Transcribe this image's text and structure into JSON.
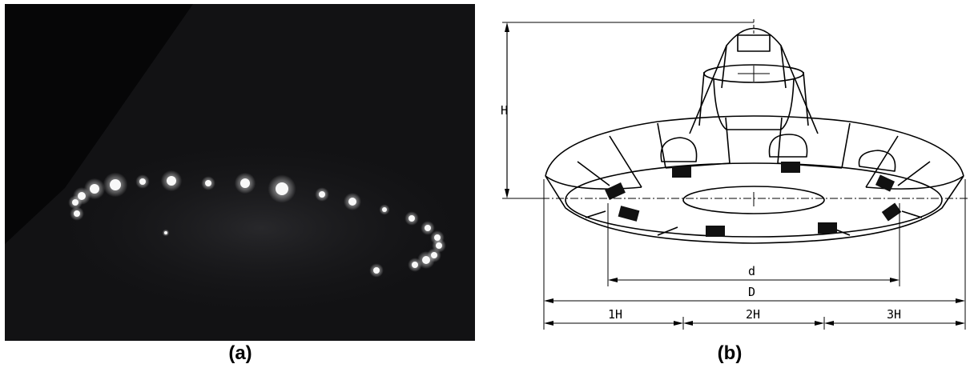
{
  "panel_a": {
    "caption": "(a)"
  },
  "panel_b": {
    "caption": "(b)",
    "labels": {
      "height": "H",
      "inner_diameter": "d",
      "outer_diameter": "D",
      "segment_1": "1H",
      "segment_2": "2H",
      "segment_3": "3H"
    }
  }
}
